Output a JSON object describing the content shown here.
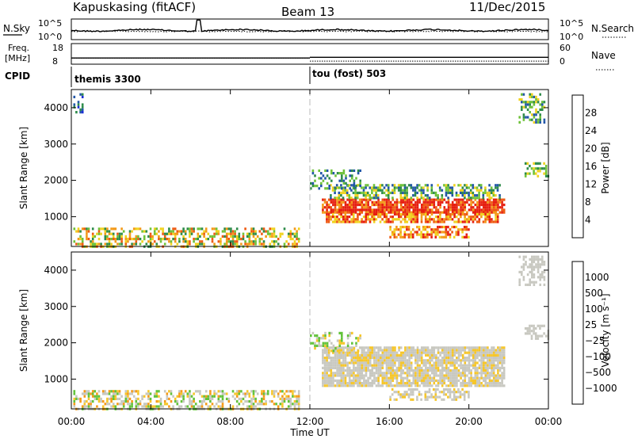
{
  "header": {
    "station": "Kapuskasing (fitACF)",
    "beam": "Beam 13",
    "date": "11/Dec/2015"
  },
  "noise_panel": {
    "left_label": "N.Sky",
    "right_label": "N.Search",
    "left_ticks": [
      "10^5",
      "10^0"
    ],
    "right_ticks": [
      "10^5",
      "10^0"
    ]
  },
  "freq_panel": {
    "left_label_1": "Freq.",
    "left_label_2": "[MHz]",
    "right_label": "Nave",
    "left_ticks": [
      "18",
      "8"
    ],
    "right_ticks": [
      "60",
      "0"
    ]
  },
  "cpid_panel": {
    "label": "CPID",
    "segments": [
      {
        "name": "themis 3300",
        "start_hour": 0
      },
      {
        "name": "tou (fost) 503",
        "start_hour": 12
      }
    ]
  },
  "power_panel": {
    "ylabel": "Slant Range [km]",
    "yticks": [
      "4000",
      "3000",
      "2000",
      "1000"
    ],
    "colorbar_label": "Power [dB]",
    "colorbar_ticks": [
      "28",
      "24",
      "20",
      "16",
      "12",
      "8",
      "4"
    ],
    "colors": [
      "#1d2fd6",
      "#2256a8",
      "#2e8c4a",
      "#6fc23a",
      "#f0d21e",
      "#f39a1a",
      "#ee5a12",
      "#e61f10"
    ]
  },
  "velocity_panel": {
    "ylabel": "Slant Range [km]",
    "yticks": [
      "4000",
      "3000",
      "2000",
      "1000"
    ],
    "colorbar_label": "Velocity [m s⁻¹]",
    "colorbar_ticks": [
      "1000",
      "500",
      "100",
      "25",
      "−25",
      "−100",
      "−500",
      "−1000"
    ],
    "colors": [
      "#1a2fb8",
      "#2566a6",
      "#2f8c48",
      "#62c33a",
      "#c8c8c0",
      "#f6c62a",
      "#f59a18",
      "#ee5a12",
      "#e61f10"
    ]
  },
  "time_axis": {
    "xlabel": "Time UT",
    "xticks": [
      "00:00",
      "04:00",
      "08:00",
      "12:00",
      "16:00",
      "20:00",
      "00:00"
    ]
  },
  "chart_data": {
    "type": "heatmap",
    "x_range_hours": [
      0,
      24
    ],
    "y_range_km": [
      180,
      4500
    ],
    "noise_sky_trace": {
      "baseline": 0.55,
      "spike_hour": 6.4
    },
    "noise_search_trace": {
      "baseline": 0.6
    },
    "frequency_trace_mhz": [
      {
        "start": 0,
        "end": 12,
        "value": 11
      },
      {
        "start": 12,
        "end": 24,
        "value": 9.5
      }
    ],
    "nave_trace": [
      {
        "start": 0,
        "end": 12,
        "value": 18
      },
      {
        "start": 12,
        "end": 24,
        "value": 20
      }
    ],
    "power_regions": [
      {
        "t0": 0.1,
        "t1": 11.5,
        "r0": 200,
        "r1": 700,
        "levels": [
          2,
          3,
          4,
          5,
          6
        ],
        "density": 0.5
      },
      {
        "t0": 12.6,
        "t1": 21.8,
        "r0": 1100,
        "r1": 1500,
        "levels": [
          5,
          6,
          7,
          7
        ],
        "density": 0.85
      },
      {
        "t0": 12.8,
        "t1": 21.5,
        "r0": 850,
        "r1": 1100,
        "levels": [
          4,
          5,
          6,
          7
        ],
        "density": 0.7
      },
      {
        "t0": 13.0,
        "t1": 21.5,
        "r0": 1500,
        "r1": 1900,
        "levels": [
          1,
          2,
          3,
          4
        ],
        "density": 0.55
      },
      {
        "t0": 16.0,
        "t1": 20.0,
        "r0": 450,
        "r1": 750,
        "levels": [
          4,
          5,
          6,
          7
        ],
        "density": 0.6
      },
      {
        "t0": 12.0,
        "t1": 14.5,
        "r0": 1800,
        "r1": 2300,
        "levels": [
          1,
          2,
          3
        ],
        "density": 0.35
      },
      {
        "t0": 0.1,
        "t1": 0.6,
        "r0": 3900,
        "r1": 4400,
        "levels": [
          0,
          1,
          2
        ],
        "density": 0.45
      },
      {
        "t0": 22.5,
        "t1": 23.8,
        "r0": 3600,
        "r1": 4400,
        "levels": [
          1,
          2,
          3,
          4
        ],
        "density": 0.45
      },
      {
        "t0": 22.8,
        "t1": 24.0,
        "r0": 2100,
        "r1": 2500,
        "levels": [
          2,
          3,
          4
        ],
        "density": 0.5
      }
    ],
    "velocity_regions": [
      {
        "t0": 0.1,
        "t1": 11.5,
        "r0": 200,
        "r1": 700,
        "levels": [
          4,
          4,
          5,
          6,
          3
        ],
        "density": 0.5
      },
      {
        "t0": 12.6,
        "t1": 21.8,
        "r0": 850,
        "r1": 1900,
        "levels": [
          4,
          4,
          4,
          5
        ],
        "density": 0.85
      },
      {
        "t0": 16.0,
        "t1": 20.0,
        "r0": 450,
        "r1": 750,
        "levels": [
          4,
          4,
          5
        ],
        "density": 0.6
      },
      {
        "t0": 12.0,
        "t1": 14.5,
        "r0": 1800,
        "r1": 2300,
        "levels": [
          4,
          5,
          3
        ],
        "density": 0.35
      },
      {
        "t0": 22.5,
        "t1": 23.8,
        "r0": 3600,
        "r1": 4400,
        "levels": [
          4,
          4
        ],
        "density": 0.45
      },
      {
        "t0": 22.8,
        "t1": 24.0,
        "r0": 2100,
        "r1": 2500,
        "levels": [
          4,
          4
        ],
        "density": 0.5
      }
    ]
  }
}
